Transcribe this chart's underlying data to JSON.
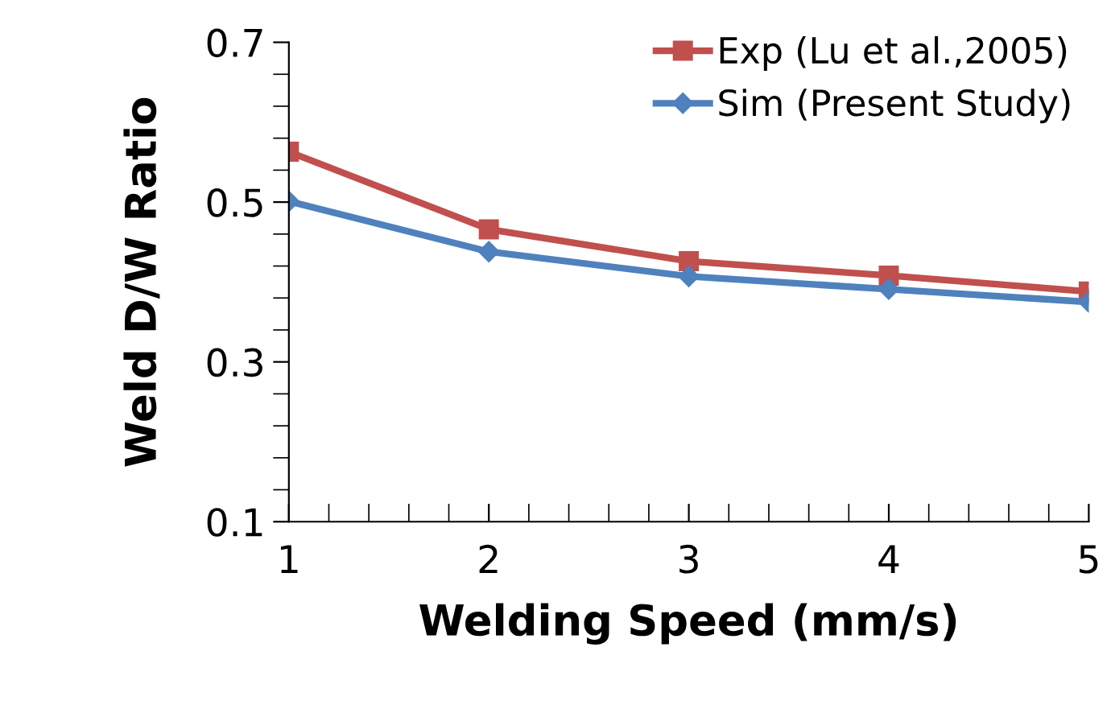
{
  "chart_data": {
    "type": "line",
    "xlabel": "Welding Speed (mm/s)",
    "ylabel": "Weld D/W Ratio",
    "x": [
      1,
      2,
      3,
      4,
      5
    ],
    "series": [
      {
        "name": "Exp (Lu et al.,2005)",
        "color": "#c0504d",
        "marker": "square",
        "values": [
          0.563,
          0.466,
          0.426,
          0.408,
          0.388
        ]
      },
      {
        "name": "Sim (Present Study)",
        "color": "#4f81bd",
        "marker": "diamond",
        "values": [
          0.501,
          0.438,
          0.407,
          0.391,
          0.375
        ]
      }
    ],
    "xlim": [
      1,
      5
    ],
    "ylim": [
      0.1,
      0.7
    ],
    "xticks": [
      1,
      2,
      3,
      4,
      5
    ],
    "yticks": [
      0.1,
      0.3,
      0.5,
      0.7
    ],
    "grid": false,
    "legend": "top right",
    "line_style": "solid"
  }
}
